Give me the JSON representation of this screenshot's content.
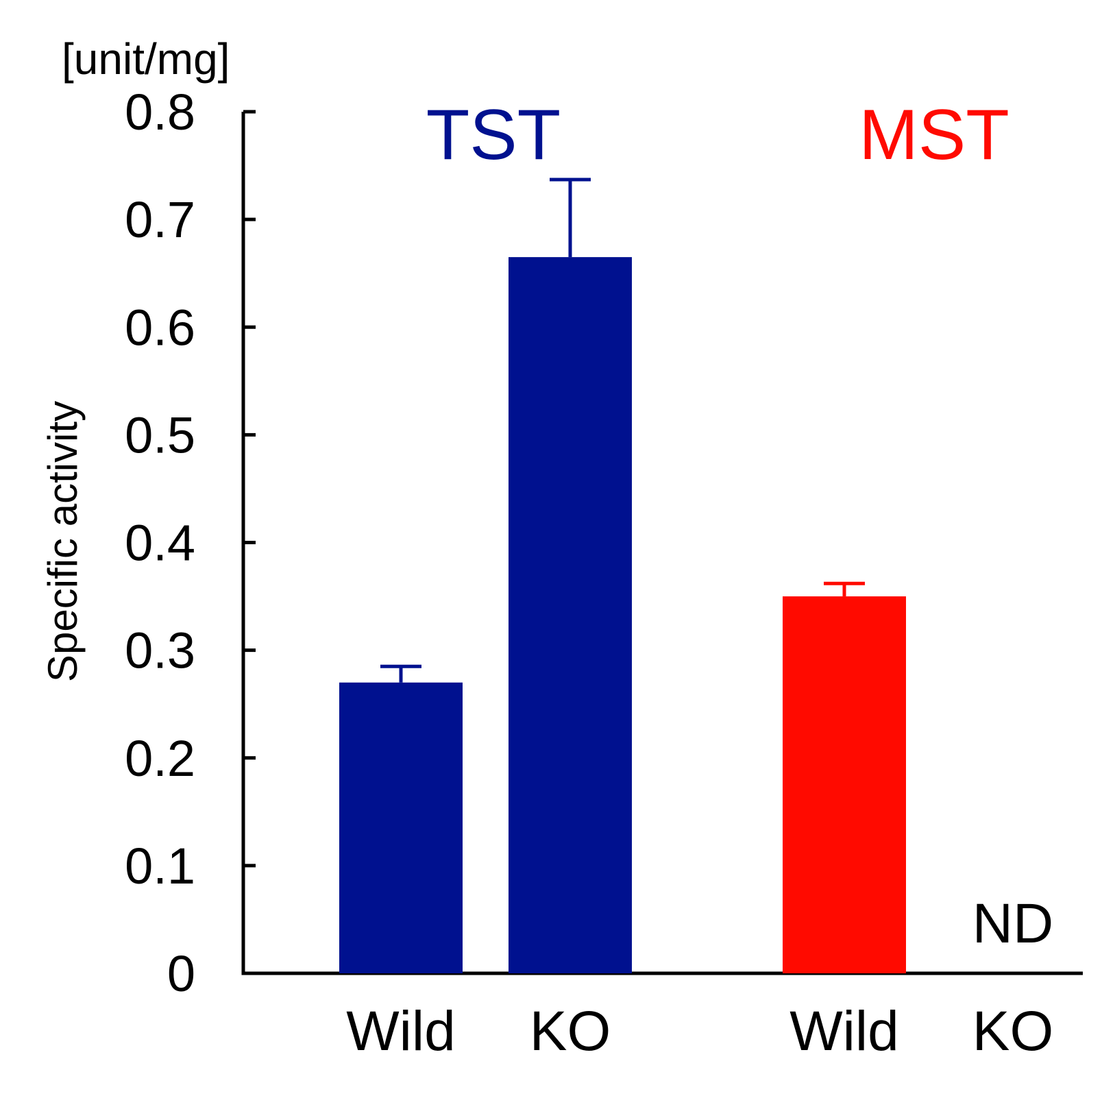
{
  "chart_data": {
    "type": "bar",
    "unit_label": "[unit/mg]",
    "ylabel": "Specific activity",
    "xlabel": "",
    "ylim": [
      0,
      0.8
    ],
    "yticks": [
      "0",
      "0.1",
      "0.2",
      "0.3",
      "0.4",
      "0.5",
      "0.6",
      "0.7",
      "0.8"
    ],
    "grid": false,
    "groups": [
      {
        "name": "TST",
        "color": "#00118f",
        "categories": [
          "Wild",
          "KO"
        ],
        "values": [
          0.27,
          0.665
        ],
        "errors": [
          0.015,
          0.072
        ],
        "annotations": [
          "",
          ""
        ]
      },
      {
        "name": "MST",
        "color": "#ff0a00",
        "categories": [
          "Wild",
          "KO"
        ],
        "values": [
          0.35,
          0
        ],
        "errors": [
          0.012,
          0
        ],
        "annotations": [
          "",
          "ND"
        ]
      }
    ]
  }
}
